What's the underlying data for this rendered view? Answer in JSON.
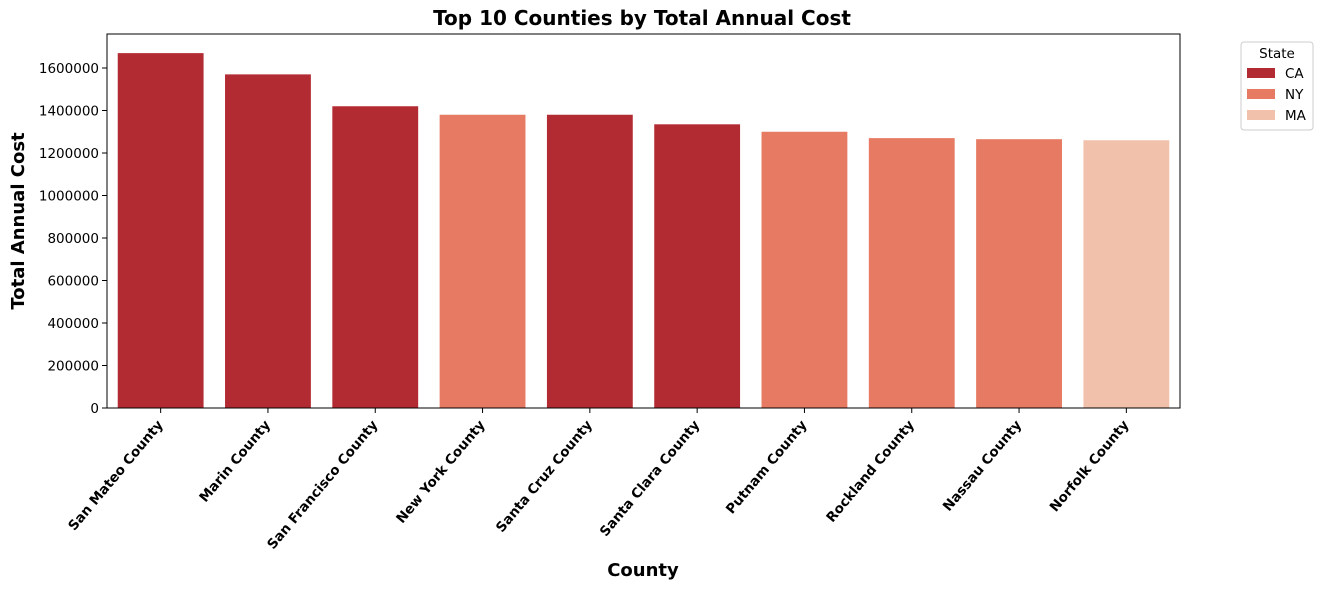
{
  "chart_data": {
    "type": "bar",
    "title": "Top 10 Counties by Total Annual Cost",
    "xlabel": "County",
    "ylabel": "Total Annual Cost",
    "ylim": [
      0,
      1760000
    ],
    "yticks": [
      0,
      200000,
      400000,
      600000,
      800000,
      1000000,
      1200000,
      1400000,
      1600000
    ],
    "ytick_labels": [
      "0",
      "200000",
      "400000",
      "600000",
      "800000",
      "1000000",
      "1200000",
      "1400000",
      "1600000"
    ],
    "categories": [
      "San Mateo County",
      "Marin County",
      "San Francisco County",
      "New York County",
      "Santa Cruz County",
      "Santa Clara County",
      "Putnam County",
      "Rockland County",
      "Nassau County",
      "Norfolk County"
    ],
    "values": [
      1670000,
      1570000,
      1420000,
      1380000,
      1380000,
      1335000,
      1300000,
      1270000,
      1265000,
      1260000
    ],
    "hue": [
      "CA",
      "CA",
      "CA",
      "NY",
      "CA",
      "CA",
      "NY",
      "NY",
      "NY",
      "MA"
    ],
    "legend": {
      "title": "State",
      "position": "outside-top-right",
      "entries": [
        {
          "label": "CA",
          "color": "#b32b32"
        },
        {
          "label": "NY",
          "color": "#e67a63"
        },
        {
          "label": "MA",
          "color": "#f1c1ab"
        }
      ]
    },
    "grid": false
  }
}
